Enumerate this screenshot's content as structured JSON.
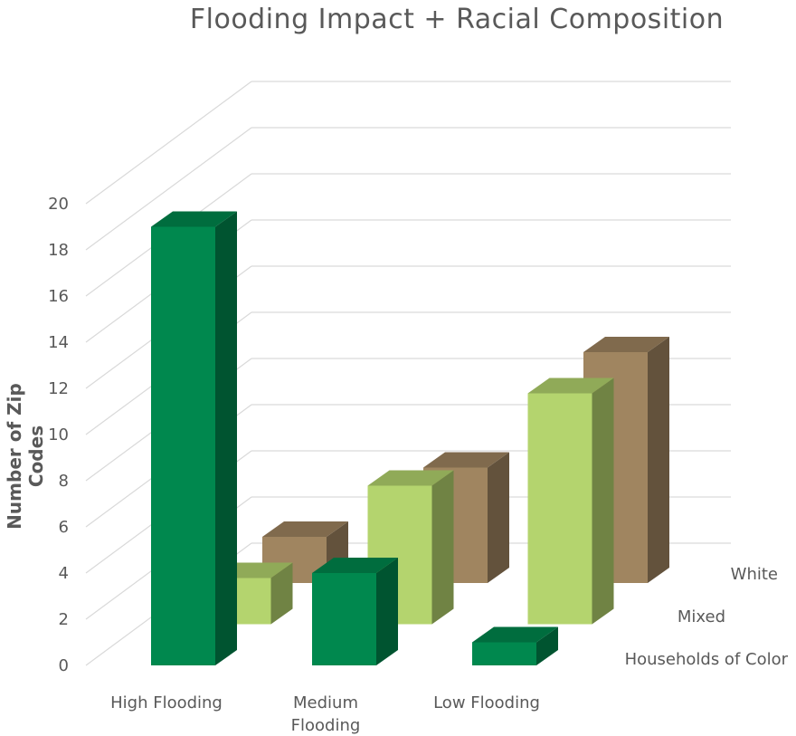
{
  "chart_data": {
    "type": "bar",
    "subtype": "3d-clustered-column",
    "title": "Flooding Impact + Racial Composition",
    "ylabel": "Number of Zip Codes",
    "xlabel": "",
    "ylim": [
      0,
      20
    ],
    "yticks": [
      "0",
      "2",
      "4",
      "6",
      "8",
      "10",
      "12",
      "14",
      "16",
      "18",
      "20"
    ],
    "categories": [
      "High Flooding",
      "Medium Flooding",
      "Low Flooding"
    ],
    "series": [
      {
        "name": "Households of Color",
        "color": "#00884E",
        "values": [
          19,
          4,
          1
        ]
      },
      {
        "name": "Mixed",
        "color": "#B4D46E",
        "values": [
          2,
          6,
          10
        ]
      },
      {
        "name": "White",
        "color": "#A08560",
        "values": [
          2,
          5,
          10
        ]
      }
    ],
    "grid": true
  }
}
